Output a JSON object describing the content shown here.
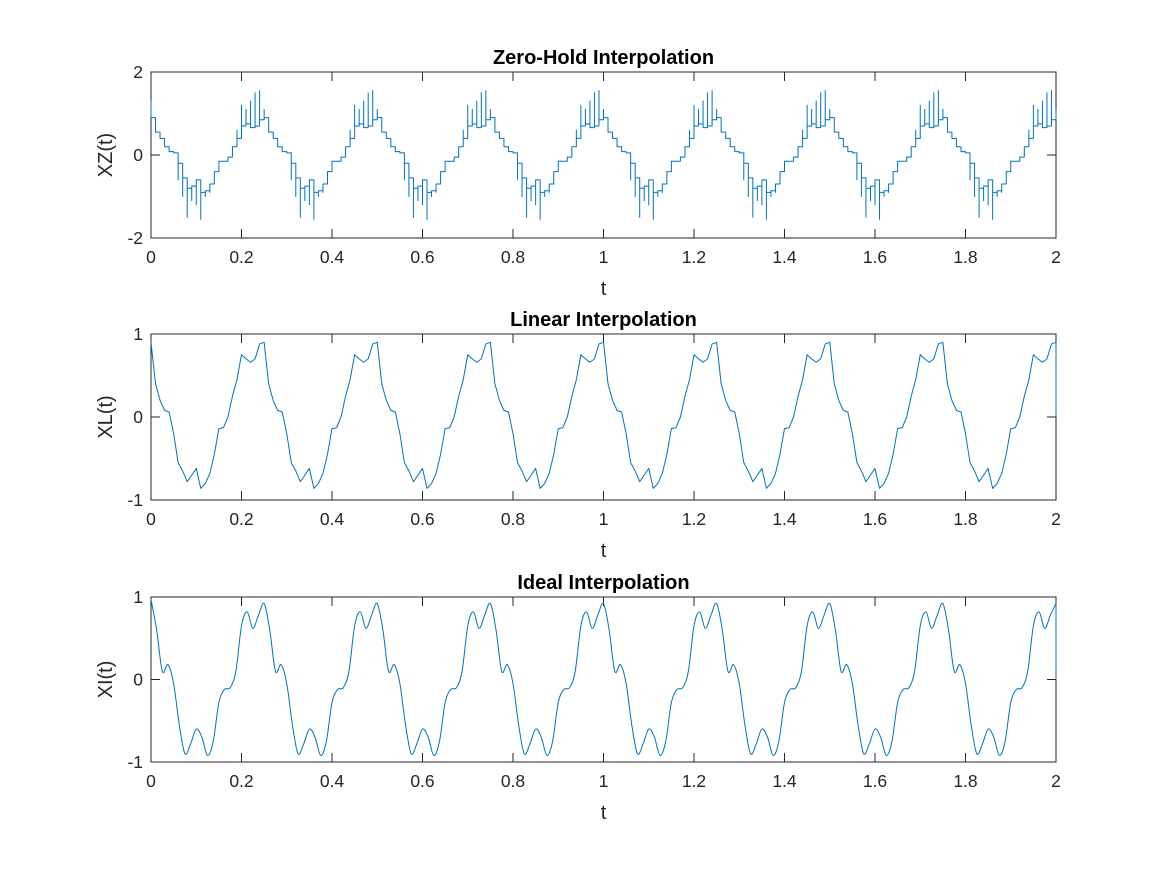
{
  "colors": {
    "series": "#0072bd",
    "axes": "#262626",
    "background": "#ffffff"
  },
  "chart_data": [
    {
      "type": "line",
      "title": "Zero-Hold Interpolation",
      "xlabel": "t",
      "ylabel": "XZ(t)",
      "xlim": [
        0,
        2
      ],
      "ylim": [
        -2,
        2
      ],
      "xticks": [
        "0",
        "0.2",
        "0.4",
        "0.6",
        "0.8",
        "1",
        "1.2",
        "1.4",
        "1.6",
        "1.8",
        "2"
      ],
      "yticks": [
        "-2",
        "0",
        "2"
      ],
      "grid": false,
      "period": 0.25,
      "series": [
        {
          "interpolation": "zero-hold",
          "x": [
            0,
            0.01,
            0.02,
            0.03,
            0.04,
            0.05,
            0.06,
            0.07,
            0.08,
            0.09,
            0.1,
            0.11,
            0.12,
            0.13,
            0.14,
            0.15,
            0.16,
            0.17,
            0.18,
            0.19,
            0.2,
            0.21,
            0.22,
            0.23,
            0.24,
            0.25
          ],
          "y": [
            0.9,
            0.55,
            0.4,
            0.2,
            0.08,
            0.05,
            -0.2,
            -0.55,
            -0.8,
            -0.75,
            -0.6,
            -0.9,
            -0.86,
            -0.7,
            -0.4,
            -0.15,
            -0.15,
            -0.05,
            0.2,
            0.4,
            0.7,
            0.75,
            0.66,
            0.7,
            0.85,
            0.9
          ],
          "spike_y": [
            1.3,
            0.0,
            0.0,
            0.0,
            0.0,
            0.0,
            -0.6,
            -1.0,
            -1.5,
            -1.1,
            -1.2,
            -1.55,
            -1.0,
            -0.9,
            0.0,
            0.0,
            0.0,
            0.0,
            0.0,
            0.6,
            1.2,
            1.1,
            1.3,
            1.5,
            1.55,
            1.1
          ]
        }
      ]
    },
    {
      "type": "line",
      "title": "Linear Interpolation",
      "xlabel": "t",
      "ylabel": "XL(t)",
      "xlim": [
        0,
        2
      ],
      "ylim": [
        -1,
        1
      ],
      "xticks": [
        "0",
        "0.2",
        "0.4",
        "0.6",
        "0.8",
        "1",
        "1.2",
        "1.4",
        "1.6",
        "1.8",
        "2"
      ],
      "yticks": [
        "-1",
        "0",
        "1"
      ],
      "grid": false,
      "period": 0.25,
      "series": [
        {
          "interpolation": "linear",
          "x": [
            0,
            0.01,
            0.02,
            0.03,
            0.04,
            0.05,
            0.06,
            0.07,
            0.08,
            0.09,
            0.1,
            0.11,
            0.12,
            0.13,
            0.14,
            0.15,
            0.16,
            0.17,
            0.18,
            0.19,
            0.2,
            0.21,
            0.22,
            0.23,
            0.24,
            0.25
          ],
          "y": [
            0.9,
            0.4,
            0.2,
            0.08,
            0.06,
            -0.2,
            -0.55,
            -0.65,
            -0.78,
            -0.7,
            -0.62,
            -0.86,
            -0.8,
            -0.68,
            -0.45,
            -0.14,
            -0.13,
            0.0,
            0.25,
            0.45,
            0.75,
            0.7,
            0.66,
            0.7,
            0.88,
            0.9
          ]
        }
      ]
    },
    {
      "type": "line",
      "title": "Ideal Interpolation",
      "xlabel": "t",
      "ylabel": "XI(t)",
      "xlim": [
        0,
        2
      ],
      "ylim": [
        -1,
        1
      ],
      "xticks": [
        "0",
        "0.2",
        "0.4",
        "0.6",
        "0.8",
        "1",
        "1.2",
        "1.4",
        "1.6",
        "1.8",
        "2"
      ],
      "yticks": [
        "-1",
        "0",
        "1"
      ],
      "grid": false,
      "period": 0.25,
      "series": [
        {
          "interpolation": "ideal",
          "x": [
            0,
            0.0125,
            0.025,
            0.0375,
            0.05,
            0.0625,
            0.075,
            0.0875,
            0.1,
            0.1125,
            0.125,
            0.1375,
            0.15,
            0.1625,
            0.175,
            0.1875,
            0.2,
            0.2125,
            0.225,
            0.2375,
            0.25
          ],
          "y": [
            0.97,
            0.6,
            0.1,
            0.18,
            -0.05,
            -0.55,
            -0.9,
            -0.78,
            -0.6,
            -0.7,
            -0.92,
            -0.75,
            -0.28,
            -0.12,
            -0.1,
            0.1,
            0.65,
            0.82,
            0.62,
            0.78,
            0.92
          ]
        }
      ]
    }
  ]
}
